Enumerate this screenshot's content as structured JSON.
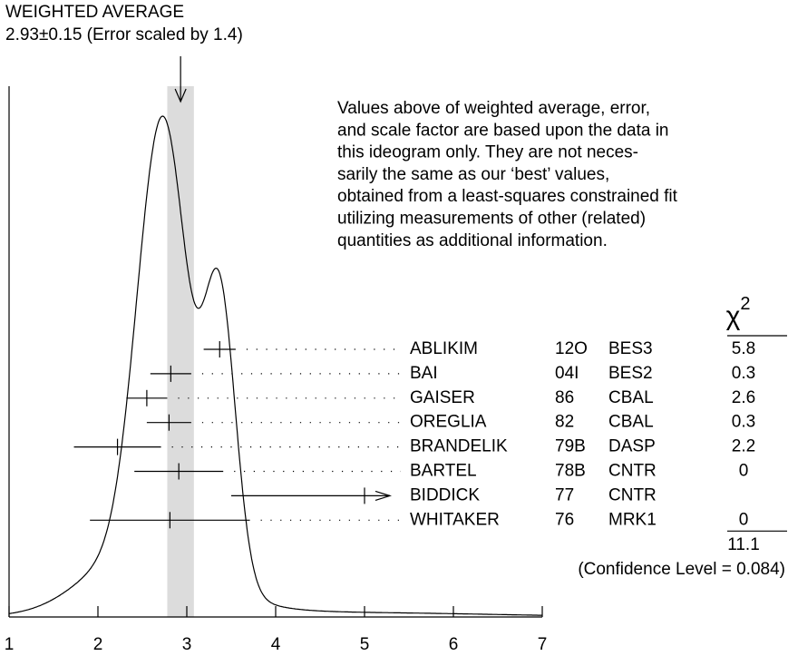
{
  "chart_data": {
    "type": "ideogram",
    "title": "WEIGHTED AVERAGE",
    "subtitle": "2.93±0.15 (Error scaled by 1.4)",
    "average": 2.93,
    "average_error": 0.15,
    "xlim": [
      1,
      7
    ],
    "xticks": [
      1,
      2,
      3,
      4,
      5,
      6,
      7
    ],
    "note": [
      "Values above of weighted average, error,",
      "and scale factor are based upon the data in",
      "this ideogram only.  They are not neces-",
      "sarily the same as our ‘best’ values,",
      "obtained from a least-squares constrained fit",
      "utilizing measurements of other (related)",
      "quantities as additional information."
    ],
    "chi2_symbol": "χ",
    "chi2_power": "2",
    "measurements": [
      {
        "name": "ABLIKIM",
        "year": "12O",
        "experiment": "BES3",
        "value": 3.37,
        "error": 0.18,
        "chi2": 5.8
      },
      {
        "name": "BAI",
        "year": "04I",
        "experiment": "BES2",
        "value": 2.82,
        "error": 0.23,
        "chi2": 0.3
      },
      {
        "name": "GAISER",
        "year": "86",
        "experiment": "CBAL",
        "value": 2.55,
        "error": 0.23,
        "chi2": 2.6
      },
      {
        "name": "OREGLIA",
        "year": "82",
        "experiment": "CBAL",
        "value": 2.8,
        "error": 0.25,
        "chi2": 0.3
      },
      {
        "name": "BRANDELIK",
        "year": "79B",
        "experiment": "DASP",
        "value": 2.22,
        "error": 0.49,
        "chi2": 2.2
      },
      {
        "name": "BARTEL",
        "year": "78B",
        "experiment": "CNTR",
        "value": 2.91,
        "error": 0.5,
        "chi2": 0.0
      },
      {
        "name": "BIDDICK",
        "year": "77",
        "experiment": "CNTR",
        "value": 5.0,
        "error": 1.5,
        "chi2": null
      },
      {
        "name": "WHITAKER",
        "year": "76",
        "experiment": "MRK1",
        "value": 2.81,
        "error": 0.9,
        "chi2": 0.0
      }
    ],
    "chi2_total": 11.1,
    "confidence_label": "(Confidence Level = 0.084)"
  }
}
